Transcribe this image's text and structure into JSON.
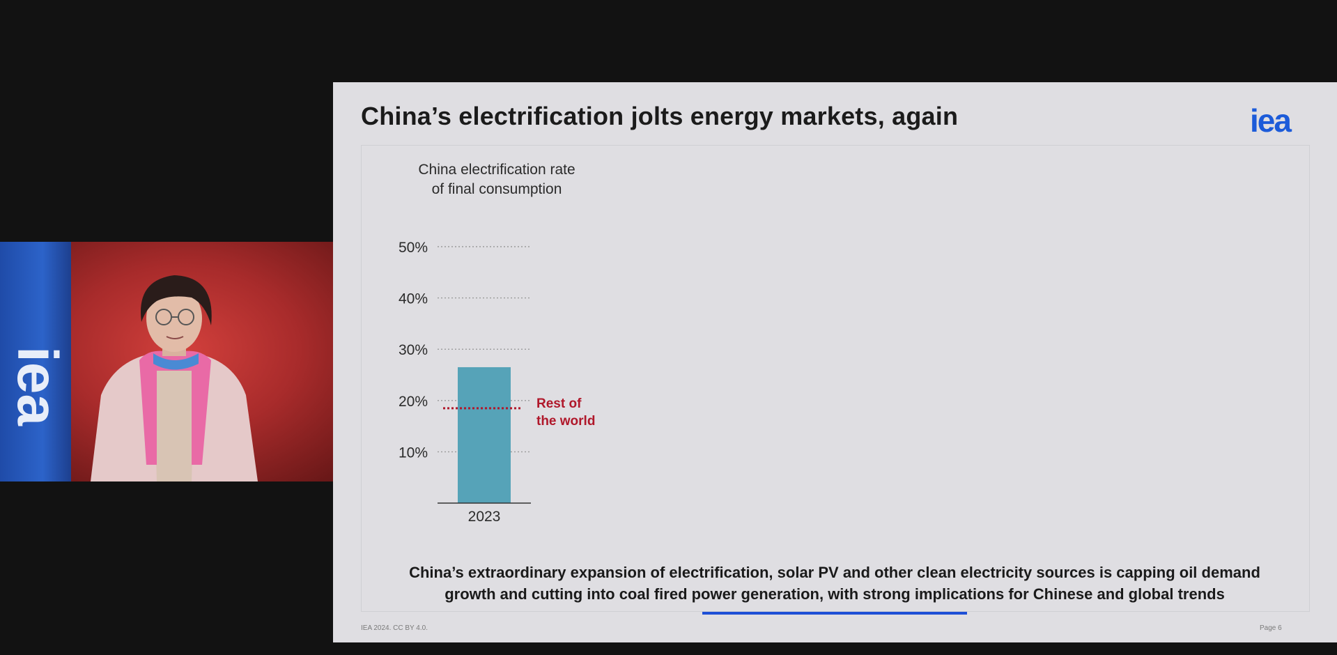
{
  "slide": {
    "title": "China’s electrification jolts energy markets, again",
    "logo": "iea",
    "takeaway_line1": "China’s extraordinary expansion of electrification, solar PV and other clean electricity sources is capping oil demand",
    "takeaway_line2": "growth and cutting into coal fired power generation, with strong implications for Chinese and global trends",
    "footer_left": "IEA 2024. CC BY 4.0.",
    "footer_right": "Page 6"
  },
  "video": {
    "flag_logo": "iea"
  },
  "colors": {
    "bar": "#56a3b8",
    "reference_line": "#b0182b",
    "accent_blue": "#1c5bd9"
  },
  "chart_data": {
    "type": "bar",
    "title_line1": "China electrification rate",
    "title_line2": "of final consumption",
    "categories": [
      "2023"
    ],
    "values": [
      26.5
    ],
    "y_ticks": [
      "10%",
      "20%",
      "30%",
      "40%",
      "50%"
    ],
    "ylim": [
      0,
      50
    ],
    "grid": true,
    "reference_line": {
      "label_line1": "Rest of",
      "label_line2": "the world",
      "value": 18.5
    }
  }
}
